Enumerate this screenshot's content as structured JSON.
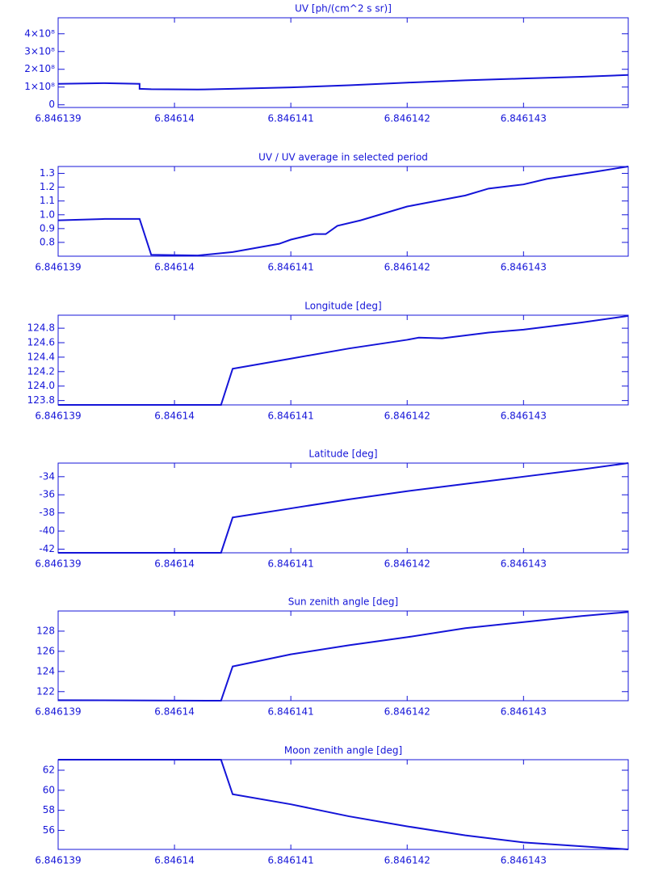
{
  "chart_data": [
    {
      "type": "line",
      "title": "UV [ph/(cm^2 s sr)]",
      "color": "#1414d8",
      "x": [
        6.846139,
        6.8461394,
        6.8461397,
        6.8461397,
        6.8461398,
        6.8461402,
        6.8461405,
        6.846141,
        6.8461415,
        6.846142,
        6.8461425,
        6.846143,
        6.8461435,
        6.8461439
      ],
      "values": [
        118000000,
        122000000,
        118000000,
        90000000,
        88000000,
        86000000,
        90000000,
        98000000,
        110000000,
        125000000,
        138000000,
        148000000,
        158000000,
        168000000
      ],
      "xlim": [
        6.846139,
        6.8461439
      ],
      "xticks": [
        6.846139,
        6.84614,
        6.846141,
        6.846142,
        6.846143
      ],
      "ylim": [
        -15000000,
        490000000
      ],
      "yticks": [
        0,
        {
          "value": 100000000,
          "label": "1×10⁸"
        },
        {
          "value": 200000000,
          "label": "2×10⁸"
        },
        {
          "value": 300000000,
          "label": "3×10⁸"
        },
        {
          "value": 400000000,
          "label": "4×10⁸"
        }
      ]
    },
    {
      "type": "line",
      "title": "UV / UV average in selected period",
      "color": "#1414d8",
      "x": [
        6.846139,
        6.8461394,
        6.8461397,
        6.8461398,
        6.8461402,
        6.8461405,
        6.8461409,
        6.846141,
        6.8461412,
        6.8461413,
        6.8461414,
        6.8461416,
        6.846142,
        6.8461425,
        6.8461427,
        6.846143,
        6.8461432,
        6.8461436,
        6.8461439
      ],
      "values": [
        0.96,
        0.97,
        0.97,
        0.71,
        0.705,
        0.73,
        0.79,
        0.82,
        0.86,
        0.86,
        0.92,
        0.96,
        1.06,
        1.14,
        1.19,
        1.22,
        1.26,
        1.31,
        1.35
      ],
      "xlim": [
        6.846139,
        6.8461439
      ],
      "xticks": [
        6.846139,
        6.84614,
        6.846141,
        6.846142,
        6.846143
      ],
      "ylim": [
        0.7,
        1.35
      ],
      "yticks": [
        0.8,
        0.9,
        {
          "value": 1,
          "label": "1.0"
        },
        1.1,
        1.2,
        1.3
      ]
    },
    {
      "type": "line",
      "title": "Longitude [deg]",
      "color": "#1414d8",
      "x": [
        6.846139,
        6.8461404,
        6.8461405,
        6.846141,
        6.8461415,
        6.846142,
        6.8461421,
        6.8461423,
        6.8461427,
        6.846143,
        6.8461435,
        6.8461439
      ],
      "values": [
        123.74,
        123.74,
        124.24,
        124.38,
        124.52,
        124.64,
        124.67,
        124.66,
        124.74,
        124.78,
        124.88,
        124.97
      ],
      "xlim": [
        6.846139,
        6.8461439
      ],
      "xticks": [
        6.846139,
        6.84614,
        6.846141,
        6.846142,
        6.846143
      ],
      "ylim": [
        123.74,
        124.98
      ],
      "yticks": [
        123.8,
        {
          "value": 124,
          "label": "124.0"
        },
        124.2,
        124.4,
        124.6,
        124.8
      ]
    },
    {
      "type": "line",
      "title": "Latitude [deg]",
      "color": "#1414d8",
      "x": [
        6.846139,
        6.8461404,
        6.8461405,
        6.846141,
        6.8461415,
        6.846142,
        6.8461425,
        6.846143,
        6.8461435,
        6.8461439
      ],
      "values": [
        -42.4,
        -42.4,
        -38.5,
        -37.5,
        -36.5,
        -35.6,
        -34.8,
        -34,
        -33.2,
        -32.5
      ],
      "xlim": [
        6.846139,
        6.8461439
      ],
      "xticks": [
        6.846139,
        6.84614,
        6.846141,
        6.846142,
        6.846143
      ],
      "ylim": [
        -42.4,
        -32.5
      ],
      "yticks": [
        -42,
        -40,
        -38,
        -36,
        -34
      ]
    },
    {
      "type": "line",
      "title": "Sun zenith angle [deg]",
      "color": "#1414d8",
      "x": [
        6.846139,
        6.8461404,
        6.8461405,
        6.846141,
        6.8461415,
        6.846142,
        6.8461425,
        6.846143,
        6.8461435,
        6.8461439
      ],
      "values": [
        121.15,
        121.1,
        124.5,
        125.7,
        126.6,
        127.4,
        128.3,
        128.9,
        129.5,
        129.9
      ],
      "xlim": [
        6.846139,
        6.8461439
      ],
      "xticks": [
        6.846139,
        6.84614,
        6.846141,
        6.846142,
        6.846143
      ],
      "ylim": [
        121.1,
        130
      ],
      "yticks": [
        122,
        124,
        126,
        128
      ]
    },
    {
      "type": "line",
      "title": "Moon zenith angle [deg]",
      "color": "#1414d8",
      "x": [
        6.846139,
        6.8461404,
        6.8461405,
        6.846141,
        6.8461415,
        6.846142,
        6.8461425,
        6.846143,
        6.8461439
      ],
      "values": [
        63.05,
        63.05,
        59.6,
        58.6,
        57.4,
        56.4,
        55.5,
        54.8,
        54.1
      ],
      "xlim": [
        6.846139,
        6.8461439
      ],
      "xticks": [
        6.846139,
        6.84614,
        6.846141,
        6.846142,
        6.846143
      ],
      "ylim": [
        54.1,
        63.05
      ],
      "yticks": [
        56,
        58,
        60,
        62
      ]
    }
  ]
}
